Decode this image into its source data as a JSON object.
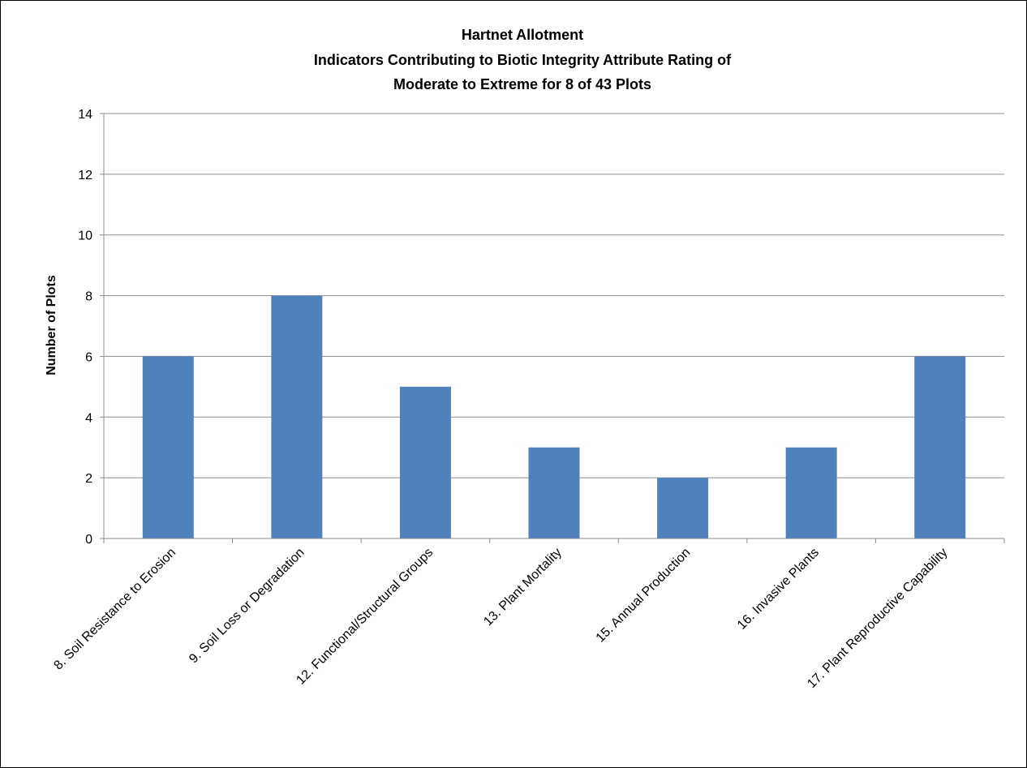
{
  "chart_data": {
    "type": "bar",
    "title": [
      "Hartnet Allotment",
      "Indicators Contributing to Biotic Integrity Attribute Rating of",
      "Moderate to Extreme for 8 of 43 Plots"
    ],
    "xlabel": "",
    "ylabel": "Number of Plots",
    "ylim": [
      0,
      14
    ],
    "yticks": [
      0,
      2,
      4,
      6,
      8,
      10,
      12,
      14
    ],
    "categories": [
      "8. Soil Resistance to Erosion",
      "9. Soil Loss or Degradation",
      "12. Functional/Structural Groups",
      "13. Plant Mortality",
      "15. Annual Production",
      "16. Invasive Plants",
      "17. Plant Reproductive Capability"
    ],
    "values": [
      6,
      8,
      5,
      3,
      2,
      3,
      6
    ],
    "grid": true,
    "legend": "none",
    "bar_color": "#4f81bd",
    "grid_color": "#8c8c8c",
    "axis_color": "#8c8c8c"
  }
}
